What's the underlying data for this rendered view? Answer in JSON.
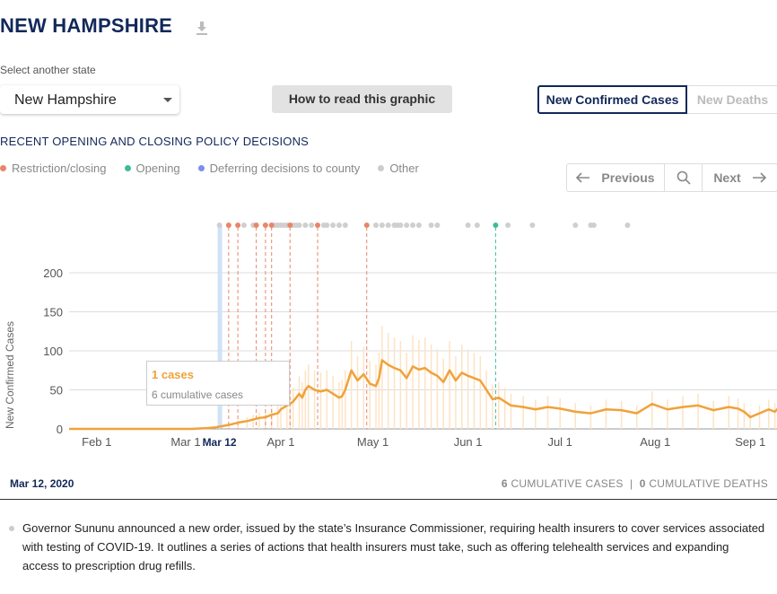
{
  "page": {
    "title": "NEW HAMPSHIRE",
    "select_label": "Select another state",
    "selected_state": "New Hampshire",
    "howto_label": "How to read this graphic",
    "toggle_active": "New Confirmed Cases",
    "toggle_inactive": "New Deaths",
    "section_title": "RECENT OPENING AND CLOSING POLICY DECISIONS",
    "legend": [
      {
        "label": "Restriction/closing",
        "color": "#e8866a"
      },
      {
        "label": "Opening",
        "color": "#3dbb9b"
      },
      {
        "label": "Deferring decisions to county",
        "color": "#7b8ef0"
      },
      {
        "label": "Other",
        "color": "#cccccc"
      }
    ],
    "nav": {
      "previous": "Previous",
      "next": "Next"
    },
    "tooltip": {
      "cases": "1 cases",
      "cumulative": "6 cumulative cases"
    },
    "selected_date": "Mar 12, 2020",
    "cum_cases": "6",
    "cum_cases_label": "CUMULATIVE CASES",
    "separator": "|",
    "cum_deaths": "0",
    "cum_deaths_label": "CUMULATIVE DEATHS",
    "note": "Governor Sununu announced a new order, issued by the state’s Insurance Commissioner, requiring health insurers to cover services associated with testing of COVID-19. It outlines a series of actions that health insurers must take, such as offering telehealth services and expanding access to prescription drug refills."
  },
  "chart_data": {
    "type": "line",
    "ylabel": "New Confirmed Cases",
    "ylim": [
      0,
      200
    ],
    "yticks": [
      0,
      50,
      100,
      150,
      200
    ],
    "x_tick_labels": [
      "Feb 1",
      "Mar 1",
      "Apr 1",
      "May 1",
      "Jun 1",
      "Jul 1",
      "Aug 1",
      "Sep 1"
    ],
    "x_tick_days": [
      9,
      38,
      69,
      99,
      130,
      160,
      191,
      222
    ],
    "highlight": {
      "label": "Mar 12",
      "day": 49
    },
    "series": [
      {
        "values_day": [
          0,
          40,
          45,
          48,
          49,
          52,
          55,
          58,
          60,
          62,
          64,
          66,
          68,
          69,
          71,
          72,
          73,
          75,
          76,
          77,
          78,
          80,
          82,
          84,
          86,
          88,
          89,
          90,
          92,
          94,
          96,
          98,
          100,
          101,
          102,
          104,
          106,
          108,
          110,
          112,
          114,
          116,
          118,
          120,
          122,
          124,
          126,
          128,
          130,
          132,
          134,
          136,
          138,
          140,
          142,
          144,
          148,
          152,
          156,
          160,
          165,
          170,
          175,
          180,
          185,
          190,
          195,
          200,
          205,
          210,
          215,
          218,
          220,
          222,
          225,
          228,
          230,
          232,
          234,
          236
        ],
        "values": [
          0,
          0,
          1,
          2,
          3,
          5,
          8,
          10,
          12,
          14,
          15,
          18,
          20,
          25,
          30,
          32,
          35,
          45,
          40,
          50,
          55,
          50,
          48,
          50,
          45,
          40,
          42,
          50,
          75,
          62,
          70,
          58,
          55,
          65,
          88,
          82,
          78,
          75,
          65,
          80,
          76,
          78,
          72,
          68,
          60,
          75,
          62,
          72,
          68,
          65,
          62,
          50,
          38,
          40,
          35,
          30,
          28,
          25,
          28,
          26,
          22,
          20,
          25,
          24,
          20,
          32,
          25,
          28,
          30,
          24,
          28,
          26,
          22,
          15,
          20,
          25,
          22,
          30,
          28,
          35
        ]
      }
    ],
    "policy_events": {
      "restriction_days": [
        52,
        55,
        61,
        64,
        66,
        72,
        81,
        97
      ],
      "opening_days": [
        139
      ],
      "other_days": [
        49,
        57,
        60,
        66,
        67,
        68,
        69,
        70,
        71,
        72,
        73,
        74,
        75,
        77,
        79,
        83,
        84,
        86,
        88,
        90,
        100,
        102,
        104,
        106,
        107,
        108,
        110,
        112,
        114,
        118,
        120,
        130,
        133,
        143,
        151,
        165,
        170,
        171,
        182
      ]
    }
  }
}
